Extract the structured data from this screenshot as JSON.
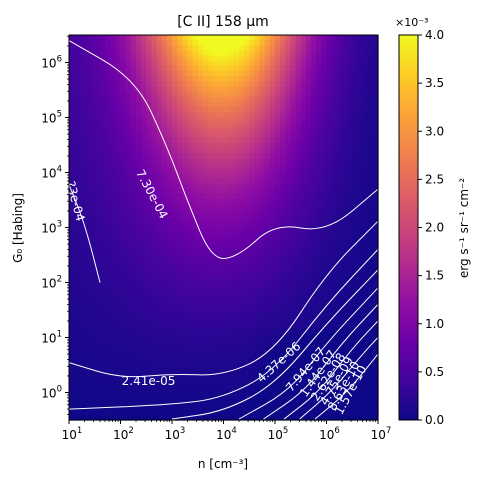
{
  "chart_data": {
    "type": "heatmap",
    "title": "[C II] 158 μm",
    "xlabel": "n [cm⁻³]",
    "ylabel": "G₀ [Habing]",
    "x_scale": "log",
    "y_scale": "log",
    "xlim": [
      10,
      10000000
    ],
    "ylim": [
      0.3162,
      3162000
    ],
    "x_tick_values": [
      10,
      100,
      1000,
      10000,
      100000,
      1000000,
      10000000
    ],
    "x_tick_labels": [
      {
        "base": "10",
        "exp": "1"
      },
      {
        "base": "10",
        "exp": "2"
      },
      {
        "base": "10",
        "exp": "3"
      },
      {
        "base": "10",
        "exp": "4"
      },
      {
        "base": "10",
        "exp": "5"
      },
      {
        "base": "10",
        "exp": "6"
      },
      {
        "base": "10",
        "exp": "7"
      }
    ],
    "y_tick_values": [
      1,
      10,
      100,
      1000,
      10000,
      100000,
      1000000
    ],
    "y_tick_labels": [
      {
        "base": "10",
        "exp": "0"
      },
      {
        "base": "10",
        "exp": "1"
      },
      {
        "base": "10",
        "exp": "2"
      },
      {
        "base": "10",
        "exp": "3"
      },
      {
        "base": "10",
        "exp": "4"
      },
      {
        "base": "10",
        "exp": "5"
      },
      {
        "base": "10",
        "exp": "6"
      }
    ],
    "colormap": "plasma",
    "colorbar": {
      "label": "erg s⁻¹ sr⁻¹ cm⁻²",
      "multiplier": "×10⁻³",
      "range": [
        0.0,
        4.0
      ],
      "ticks": [
        "0.0",
        "0.5",
        "1.0",
        "1.5",
        "2.0",
        "2.5",
        "3.0",
        "3.5",
        "4.0"
      ]
    },
    "intensity_model": {
      "units": "10⁻³ erg s⁻¹ sr⁻¹ cm⁻²",
      "peak": {
        "value": 4.0,
        "n": 10000,
        "G0": 2000000
      },
      "min_at_high_n_low_G0": 0.0
    },
    "contours": [
      {
        "label": "7.30e-04",
        "points": [
          [
            10,
            2500000
          ],
          [
            200,
            500000
          ],
          [
            800,
            30000
          ],
          [
            2000,
            3000
          ],
          [
            6000,
            250
          ],
          [
            20000,
            300
          ],
          [
            100000,
            1200
          ],
          [
            1000000,
            800
          ],
          [
            10000000,
            5000
          ]
        ]
      },
      {
        "label": "?3e-04",
        "points": [
          [
            10,
            6000
          ],
          [
            20,
            1200
          ],
          [
            40,
            100
          ]
        ]
      },
      {
        "label": "2.41e-05",
        "points": [
          [
            10,
            3.5
          ],
          [
            100,
            1.8
          ],
          [
            1000,
            2.2
          ],
          [
            10000,
            2.0
          ],
          [
            100000,
            5.5
          ],
          [
            1000000,
            150
          ],
          [
            10000000,
            1300
          ]
        ]
      },
      {
        "label": "4.37e-06",
        "points": [
          [
            10,
            0.5
          ],
          [
            1000,
            0.6
          ],
          [
            10000,
            0.8
          ],
          [
            100000,
            2.5
          ],
          [
            1000000,
            40
          ],
          [
            10000000,
            400
          ]
        ]
      },
      {
        "label": "7.94e-07",
        "points": [
          [
            1000,
            0.33
          ],
          [
            10000,
            0.45
          ],
          [
            100000,
            1.4
          ],
          [
            1000000,
            18
          ],
          [
            10000000,
            170
          ]
        ]
      },
      {
        "label": "1.44e-07",
        "points": [
          [
            20000,
            0.33
          ],
          [
            200000,
            1.1
          ],
          [
            1000000,
            8
          ],
          [
            10000000,
            80
          ]
        ]
      },
      {
        "label": "2.62e-08",
        "points": [
          [
            60000,
            0.33
          ],
          [
            400000,
            1.1
          ],
          [
            2000000,
            8
          ],
          [
            10000000,
            40
          ]
        ]
      },
      {
        "label": "4.75e-09",
        "points": [
          [
            150000,
            0.33
          ],
          [
            700000,
            1.0
          ],
          [
            3000000,
            6
          ],
          [
            10000000,
            20
          ]
        ]
      },
      {
        "label": "8.63e-10",
        "points": [
          [
            300000,
            0.33
          ],
          [
            1200000,
            1.0
          ],
          [
            5000000,
            5
          ],
          [
            10000000,
            10
          ]
        ]
      },
      {
        "label": "1.57e-10",
        "points": [
          [
            600000,
            0.33
          ],
          [
            2500000,
            1.0
          ],
          [
            10000000,
            5
          ]
        ]
      }
    ]
  }
}
